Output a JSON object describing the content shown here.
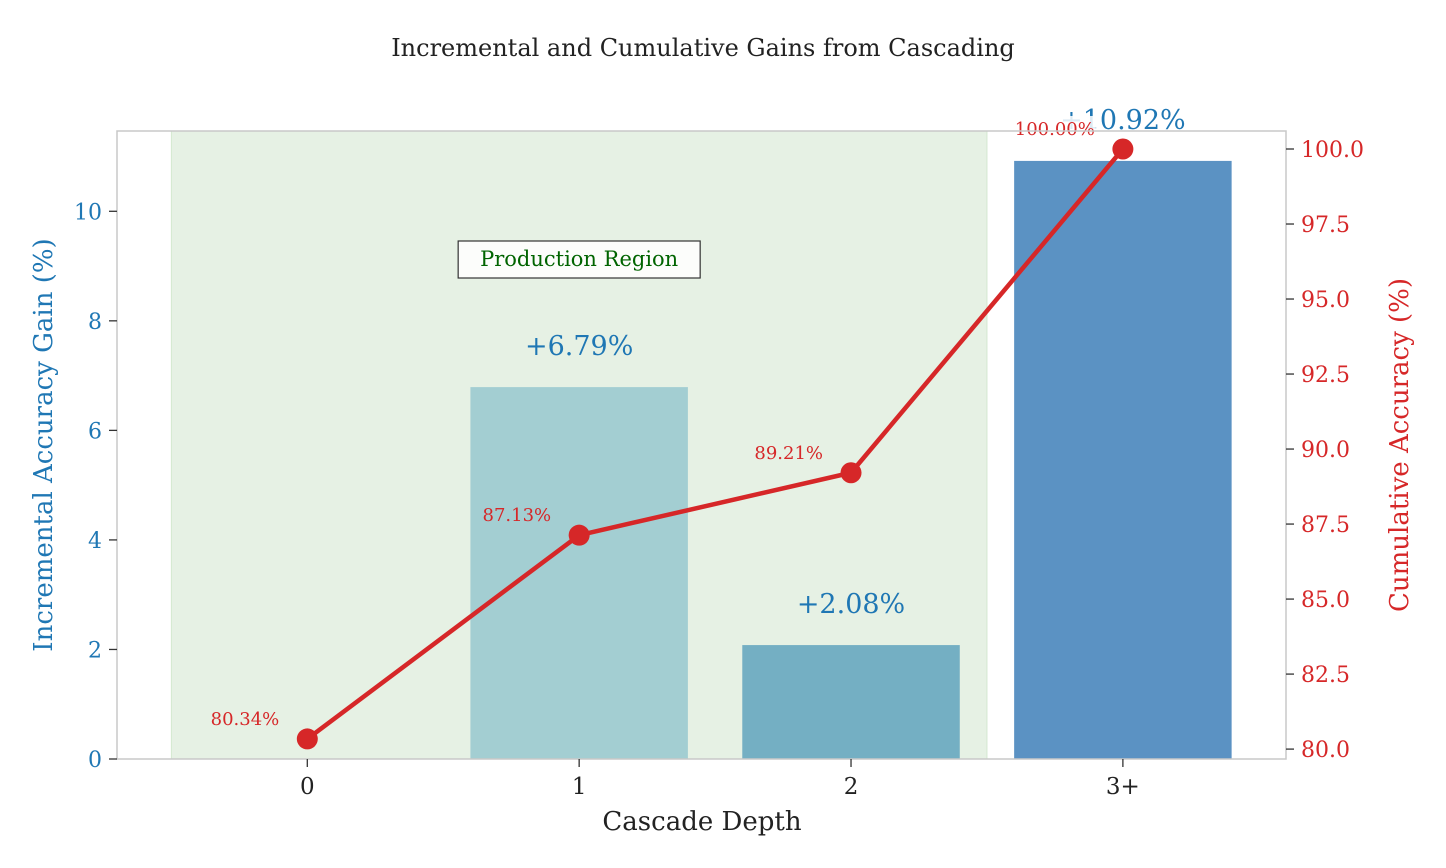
{
  "chart_data": {
    "type": "bar+line",
    "title": "Incremental and Cumulative Gains from Cascading",
    "xlabel": "Cascade Depth",
    "ylabel_left": "Incremental Accuracy Gain (%)",
    "ylabel_right": "Cumulative Accuracy (%)",
    "categories": [
      "0",
      "1",
      "2",
      "3+"
    ],
    "bar_series": {
      "name": "Incremental Accuracy Gain",
      "values": [
        0,
        6.79,
        2.08,
        10.92
      ],
      "labels": [
        "",
        "+6.79%",
        "+2.08%",
        "+10.92%"
      ],
      "colors": [
        "#a8d5d3",
        "#a3ced2",
        "#74afc3",
        "#5b92c3"
      ]
    },
    "line_series": {
      "name": "Cumulative Accuracy",
      "values": [
        80.34,
        87.13,
        89.21,
        100.0
      ],
      "labels": [
        "80.34%",
        "87.13%",
        "89.21%",
        "100.00%"
      ],
      "color": "#d62728"
    },
    "ylim_left": [
      0,
      11.466
    ],
    "yticks_left": [
      "0",
      "2",
      "4",
      "6",
      "8",
      "10"
    ],
    "yticks_left_values": [
      0,
      2,
      4,
      6,
      8,
      10
    ],
    "ylim_right": [
      79.67,
      100.6
    ],
    "yticks_right": [
      "80.0",
      "82.5",
      "85.0",
      "87.5",
      "90.0",
      "92.5",
      "95.0",
      "97.5",
      "100.0"
    ],
    "yticks_right_values": [
      80,
      82.5,
      85,
      87.5,
      90,
      92.5,
      95,
      97.5,
      100
    ],
    "xlim": [
      -0.7,
      3.6
    ],
    "shaded_region": {
      "label": "Production Region",
      "x_start": -0.5,
      "x_end": 2.5,
      "color": "#e6f1e4"
    },
    "colors": {
      "left_axis": "#1f77b4",
      "right_axis": "#d62728",
      "annotation_text": "#006400"
    },
    "grid": false
  }
}
